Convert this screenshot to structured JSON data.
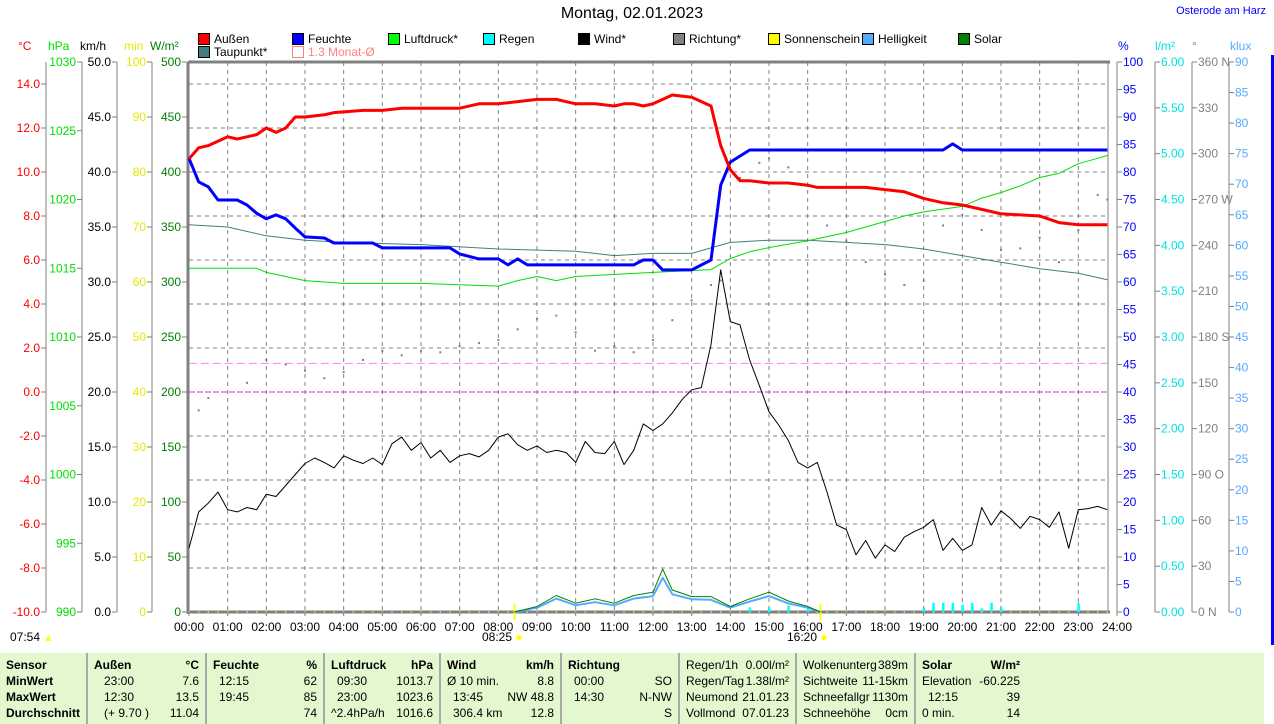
{
  "header": {
    "title": "Montag, 02.01.2023",
    "location": "Osterode am Harz"
  },
  "legend": [
    {
      "label": "Außen",
      "color": "#ff0000"
    },
    {
      "label": "Feuchte",
      "color": "#0000ff"
    },
    {
      "label": "Luftdruck*",
      "color": "#00ff00"
    },
    {
      "label": "Regen",
      "color": "#00ffff"
    },
    {
      "label": "Wind*",
      "color": "#000000"
    },
    {
      "label": "Richtung*",
      "color": "#808080"
    },
    {
      "label": "Sonnenschein",
      "color": "#ffff00"
    },
    {
      "label": "Helligkeit",
      "color": "#55aaff"
    },
    {
      "label": "Solar",
      "color": "#008000"
    },
    {
      "label": "Taupunkt*",
      "color": "#408080"
    },
    {
      "label": "1.3 Monat-Ø",
      "color": "#ff8080"
    }
  ],
  "sun": {
    "sunrise": "07:54",
    "sunshine_start": "08:25",
    "sunshine_end": "16:20"
  },
  "chart_data": {
    "type": "line",
    "title": "Montag, 02.01.2023",
    "xlim": [
      0,
      24
    ],
    "x_ticks": [
      "00:00",
      "01:00",
      "02:00",
      "03:00",
      "04:00",
      "05:00",
      "06:00",
      "07:00",
      "08:00",
      "09:00",
      "10:00",
      "11:00",
      "12:00",
      "13:00",
      "14:00",
      "15:00",
      "16:00",
      "17:00",
      "18:00",
      "19:00",
      "20:00",
      "21:00",
      "22:00",
      "23:00",
      "24:00"
    ],
    "grid": true,
    "axes": [
      {
        "id": "temp",
        "unit": "°C",
        "side": "left",
        "color": "#ff0000",
        "min": -10,
        "max": 15,
        "tick_start": -10,
        "tick_step": 2,
        "labels": [
          "-10.0",
          "-8.0",
          "-6.0",
          "-4.0",
          "-2.0",
          "0.0",
          "2.0",
          "4.0",
          "6.0",
          "8.0",
          "10.0",
          "12.0",
          "14.0"
        ]
      },
      {
        "id": "hpa",
        "unit": "hPa",
        "side": "left",
        "color": "#00dd00",
        "min": 990,
        "max": 1030,
        "tick_start": 990,
        "tick_step": 5,
        "labels": [
          "990",
          "995",
          "1000",
          "1005",
          "1010",
          "1015",
          "1020",
          "1025",
          "1030"
        ]
      },
      {
        "id": "kmh",
        "unit": "km/h",
        "side": "left",
        "color": "#000000",
        "min": 0,
        "max": 50,
        "tick_start": 0,
        "tick_step": 5,
        "labels": [
          "0.0",
          "5.0",
          "10.0",
          "15.0",
          "20.0",
          "25.0",
          "30.0",
          "35.0",
          "40.0",
          "45.0",
          "50.0"
        ]
      },
      {
        "id": "min",
        "unit": "min",
        "side": "left",
        "color": "#e8e800",
        "min": 0,
        "max": 100,
        "tick_start": 0,
        "tick_step": 10,
        "labels": [
          "0",
          "10",
          "20",
          "30",
          "40",
          "50",
          "60",
          "70",
          "80",
          "90",
          "100"
        ]
      },
      {
        "id": "wm2",
        "unit": "W/m²",
        "side": "left",
        "color": "#008000",
        "min": 0,
        "max": 500,
        "tick_start": 0,
        "tick_step": 50,
        "labels": [
          "0",
          "50",
          "100",
          "150",
          "200",
          "250",
          "300",
          "350",
          "400",
          "450",
          "500"
        ]
      },
      {
        "id": "pct",
        "unit": "%",
        "side": "right",
        "color": "#0000ff",
        "min": 0,
        "max": 100,
        "tick_start": 0,
        "tick_step": 5,
        "labels": [
          "0",
          "5",
          "10",
          "15",
          "20",
          "25",
          "30",
          "35",
          "40",
          "45",
          "50",
          "55",
          "60",
          "65",
          "70",
          "75",
          "80",
          "85",
          "90",
          "95",
          "100"
        ]
      },
      {
        "id": "rain",
        "unit": "l/m²",
        "side": "right",
        "color": "#00e0e0",
        "min": 0,
        "max": 6,
        "tick_start": 0,
        "tick_step": 0.5,
        "labels": [
          "0.00",
          "0.50",
          "1.00",
          "1.50",
          "2.00",
          "2.50",
          "3.00",
          "3.50",
          "4.00",
          "4.50",
          "5.00",
          "5.50",
          "6.00"
        ]
      },
      {
        "id": "deg",
        "unit": "°",
        "side": "right",
        "color": "#808080",
        "min": 0,
        "max": 360,
        "tick_start": 0,
        "tick_step": 30,
        "labels": [
          "0 N",
          "30",
          "60",
          "90 O",
          "120",
          "150",
          "180 S",
          "210",
          "240",
          "270 W",
          "300",
          "330",
          "360 N"
        ]
      },
      {
        "id": "klux",
        "unit": "klux",
        "side": "right",
        "color": "#55aaff",
        "min": 0,
        "max": 90,
        "tick_start": 0,
        "tick_step": 5,
        "labels": [
          "0",
          "5",
          "10",
          "15",
          "20",
          "25",
          "30",
          "35",
          "40",
          "45",
          "50",
          "55",
          "60",
          "65",
          "70",
          "75",
          "80",
          "85",
          "90"
        ]
      }
    ],
    "reference_lines": [
      {
        "name": "1.3 Monat-Ø",
        "axis": "temp",
        "value": 1.3,
        "color": "#ff80ff"
      },
      {
        "name": "zero-temp",
        "axis": "temp",
        "value": 0,
        "color": "#ff00ff"
      }
    ],
    "series": [
      {
        "name": "Außen",
        "axis": "temp",
        "color": "#ff0000",
        "width": 3,
        "x": [
          0,
          0.25,
          0.5,
          1,
          1.25,
          1.5,
          1.75,
          2,
          2.25,
          2.5,
          2.75,
          3,
          3.5,
          3.75,
          4.5,
          5,
          5.5,
          6.5,
          7,
          7.5,
          8,
          8.5,
          9,
          9.5,
          10,
          10.5,
          11,
          11.25,
          11.5,
          11.75,
          12,
          12.5,
          13,
          13.5,
          13.75,
          14,
          14.25,
          14.5,
          15,
          15.5,
          16,
          16.25,
          17,
          17.5,
          18,
          18.5,
          19,
          19.5,
          20,
          20.5,
          21,
          22,
          22.5,
          23,
          23.75
        ],
        "y": [
          10.6,
          11.1,
          11.2,
          11.6,
          11.5,
          11.6,
          11.7,
          12.0,
          11.8,
          12.0,
          12.5,
          12.5,
          12.6,
          12.7,
          12.8,
          12.8,
          12.9,
          12.9,
          12.9,
          13.1,
          13.1,
          13.2,
          13.3,
          13.3,
          13.1,
          13.1,
          13.0,
          13.1,
          13.1,
          13.0,
          13.1,
          13.5,
          13.4,
          13.0,
          11.2,
          10.1,
          9.6,
          9.6,
          9.5,
          9.5,
          9.4,
          9.3,
          9.3,
          9.3,
          9.2,
          9.1,
          8.8,
          8.6,
          8.5,
          8.3,
          8.1,
          8.0,
          7.7,
          7.6,
          7.6
        ]
      },
      {
        "name": "Feuchte",
        "axis": "pct",
        "color": "#0000ff",
        "width": 3,
        "x": [
          0,
          0.25,
          0.5,
          0.75,
          1.25,
          1.5,
          1.75,
          2,
          2.25,
          2.5,
          2.75,
          3,
          3.5,
          3.75,
          4.75,
          5,
          6.75,
          7,
          7.5,
          8,
          8.25,
          8.5,
          8.75,
          11.5,
          11.75,
          12,
          12.25,
          13,
          13.5,
          13.75,
          14,
          14.5,
          19.5,
          19.75,
          20,
          23.75
        ],
        "y": [
          82.5,
          78.2,
          77.3,
          74.9,
          74.9,
          74.0,
          72.5,
          71.5,
          72.2,
          71.5,
          69.8,
          68.2,
          68.0,
          67.1,
          67.1,
          66.2,
          66.2,
          65.1,
          64.2,
          64.2,
          63.1,
          64.2,
          63.1,
          63.1,
          64.0,
          64.0,
          62.2,
          62.2,
          64.0,
          77.6,
          81.8,
          84.0,
          84.0,
          85.1,
          84.0,
          84.0
        ]
      },
      {
        "name": "Luftdruck*",
        "axis": "hpa",
        "color": "#00dd00",
        "width": 1,
        "x": [
          0,
          1.75,
          2,
          3,
          4,
          6,
          8,
          8.5,
          9,
          9.5,
          10,
          12,
          13.5,
          14,
          14.5,
          15,
          16,
          17,
          18,
          18.5,
          19,
          20,
          20.5,
          21,
          21.5,
          22,
          22.5,
          23,
          23.5,
          23.75
        ],
        "y": [
          1015.0,
          1015.0,
          1014.7,
          1014.1,
          1013.9,
          1013.9,
          1013.7,
          1014.1,
          1014.4,
          1014.1,
          1014.4,
          1014.7,
          1014.9,
          1015.7,
          1016.2,
          1016.5,
          1017.0,
          1017.6,
          1018.4,
          1018.8,
          1019.1,
          1019.5,
          1020.1,
          1020.5,
          1021.0,
          1021.6,
          1021.9,
          1022.6,
          1023.0,
          1023.2
        ]
      },
      {
        "name": "Taupunkt*",
        "axis": "temp",
        "color": "#408080",
        "width": 1,
        "x": [
          0,
          1,
          2,
          3,
          4,
          6,
          8,
          10,
          11,
          12,
          13,
          14,
          15,
          16,
          17,
          18,
          19,
          20,
          21,
          22,
          23,
          23.75
        ],
        "y": [
          7.6,
          7.5,
          7.1,
          6.9,
          6.8,
          6.7,
          6.5,
          6.4,
          6.2,
          6.3,
          6.3,
          6.8,
          6.9,
          6.9,
          6.8,
          6.7,
          6.5,
          6.2,
          5.9,
          5.6,
          5.4,
          5.1
        ]
      },
      {
        "name": "Wind*",
        "axis": "kmh",
        "color": "#000000",
        "width": 1,
        "x_start": 0,
        "x_step": 0.25,
        "y": [
          5.8,
          9.1,
          9.9,
          10.9,
          9.3,
          9.1,
          9.5,
          9.3,
          10.7,
          10.5,
          11.5,
          12.5,
          13.5,
          14.0,
          13.6,
          13.1,
          14.2,
          13.8,
          13.5,
          14.0,
          13.4,
          15.3,
          15.9,
          14.7,
          15.4,
          14.0,
          14.7,
          13.6,
          14.2,
          14.4,
          14.1,
          14.7,
          15.9,
          16.2,
          15.2,
          14.7,
          15.1,
          14.5,
          14.7,
          14.5,
          13.6,
          15.5,
          14.5,
          14.4,
          15.5,
          13.4,
          14.7,
          17.1,
          16.5,
          17.1,
          18.1,
          19.3,
          20.2,
          20.4,
          24.3,
          31.1,
          26.4,
          26.1,
          22.9,
          20.6,
          18.2,
          17.0,
          15.6,
          13.6,
          13.1,
          13.6,
          10.9,
          7.9,
          7.5,
          5.2,
          6.5,
          4.9,
          6.1,
          5.5,
          6.8,
          7.3,
          7.7,
          8.4,
          5.6,
          6.7,
          5.6,
          6.1,
          9.5,
          7.9,
          9.2,
          8.5,
          7.6,
          8.7,
          8.4,
          7.7,
          9.1,
          5.8,
          9.3,
          9.4,
          9.6,
          9.3
        ]
      },
      {
        "name": "Helligkeit",
        "axis": "klux",
        "color": "#55aaff",
        "width": 2,
        "x": [
          8.42,
          9,
          9.5,
          10,
          10.5,
          11,
          11.5,
          12,
          12.25,
          12.5,
          13,
          13.5,
          14,
          14.5,
          15,
          15.5,
          16,
          16.33
        ],
        "y": [
          0,
          0.7,
          2.2,
          1.1,
          1.6,
          1.1,
          2.2,
          2.6,
          5.6,
          2.9,
          2.1,
          2.0,
          0.7,
          1.7,
          2.6,
          1.4,
          0.7,
          0
        ]
      },
      {
        "name": "Solar",
        "axis": "wm2",
        "color": "#008000",
        "width": 1,
        "x": [
          8.42,
          9,
          9.5,
          10,
          10.5,
          11,
          11.5,
          12,
          12.25,
          12.5,
          13,
          13.5,
          14,
          14.5,
          15,
          15.5,
          16,
          16.33
        ],
        "y": [
          0,
          5,
          15,
          8,
          12,
          8,
          15,
          18,
          39,
          20,
          14,
          14,
          5,
          12,
          18,
          10,
          5,
          0
        ]
      }
    ],
    "direction_points": {
      "name": "Richtung*",
      "axis": "deg",
      "color": "#808080",
      "x": [
        0.25,
        0.5,
        1.5,
        2,
        2.5,
        3,
        3.5,
        4,
        4.5,
        5,
        5.5,
        6,
        6.5,
        7,
        7.5,
        8,
        8.5,
        9,
        9.5,
        10,
        10.5,
        11,
        11.5,
        12,
        12.5,
        13,
        13.5,
        13.75,
        14.25,
        14.75,
        15,
        15.5,
        16,
        16.5,
        17,
        17.5,
        18,
        18.5,
        19,
        19.5,
        20,
        20.5,
        21,
        21.5,
        22,
        22.5,
        23,
        23.5,
        23.75
      ],
      "y": [
        132,
        140,
        150,
        165,
        162,
        158,
        153,
        157,
        165,
        171,
        168,
        171,
        170,
        174,
        176,
        178,
        185,
        192,
        194,
        183,
        171,
        174,
        170,
        178,
        191,
        204,
        214,
        217,
        284,
        294,
        297,
        291,
        279,
        253,
        243,
        229,
        221,
        214,
        217,
        253,
        260,
        250,
        237,
        238,
        245,
        229,
        250,
        273,
        270
      ]
    },
    "rain_bars": {
      "name": "Regen",
      "axis": "rain",
      "color": "#00ffff",
      "x": [
        14.5,
        15.0,
        15.5,
        16.0,
        19.0,
        19.25,
        19.5,
        19.75,
        20.0,
        20.25,
        20.5,
        20.75,
        21.0,
        23.0
      ],
      "y": [
        0.05,
        0.05,
        0.07,
        0.05,
        0.05,
        0.1,
        0.1,
        0.1,
        0.08,
        0.1,
        0.04,
        0.1,
        0.05,
        0.1
      ]
    },
    "sunshine_markers": [
      8.42,
      16.33
    ]
  },
  "table": {
    "headers": {
      "sensor": "Sensor",
      "aussen": "Außen",
      "aussen_unit": "°C",
      "feuchte": "Feuchte",
      "feuchte_unit": "%",
      "luftdruck": "Luftdruck",
      "luftdruck_unit": "hPa",
      "wind": "Wind",
      "wind_unit": "km/h",
      "richtung": "Richtung",
      "solar": "Solar",
      "solar_unit": "W/m²"
    },
    "rows": [
      {
        "label": "MinWert",
        "a_t": "23:00",
        "a_v": "7.6",
        "f_t": "12:15",
        "f_v": "62",
        "l_t": "09:30",
        "l_v": "1013.7",
        "w_t": "Ø 10 min.",
        "w_v": "8.8",
        "r_t": "00:00",
        "r_v": "SO"
      },
      {
        "label": "MaxWert",
        "a_t": "12:30",
        "a_v": "13.5",
        "f_t": "19:45",
        "f_v": "85",
        "l_t": "23:00",
        "l_v": "1023.6",
        "w_t": "13:45",
        "w_v": "NW 48.8",
        "r_t": "14:30",
        "r_v": "N-NW"
      },
      {
        "label": "Durchschnitt",
        "a_t": "(+ 9.70 )",
        "a_v": "11.04",
        "f_t": "",
        "f_v": "74",
        "l_t": "^2.4hPa/h",
        "l_v": "1016.6",
        "w_t": "306.4 km",
        "w_v": "12.8",
        "r_t": "",
        "r_v": "S"
      }
    ],
    "extra1": [
      {
        "k": "Regen/1h",
        "v": "0.00l/m²"
      },
      {
        "k": "Regen/Tag",
        "v": "1.38l/m²"
      },
      {
        "k": "Neumond",
        "v": "21.01.23"
      },
      {
        "k": "Vollmond",
        "v": "07.01.23"
      }
    ],
    "extra2": [
      {
        "k": "Wolkenunterg",
        "v": "389m"
      },
      {
        "k": "Sichtweite",
        "v": "11-15km"
      },
      {
        "k": "Schneefallgr",
        "v": "1130m"
      },
      {
        "k": "Schneehöhe",
        "v": "0cm"
      }
    ],
    "solar_rows": [
      {
        "k": "Elevation",
        "v": "-60.225"
      },
      {
        "k": "12:15",
        "v": "39"
      },
      {
        "k": "0 min.",
        "v": "14"
      }
    ]
  }
}
